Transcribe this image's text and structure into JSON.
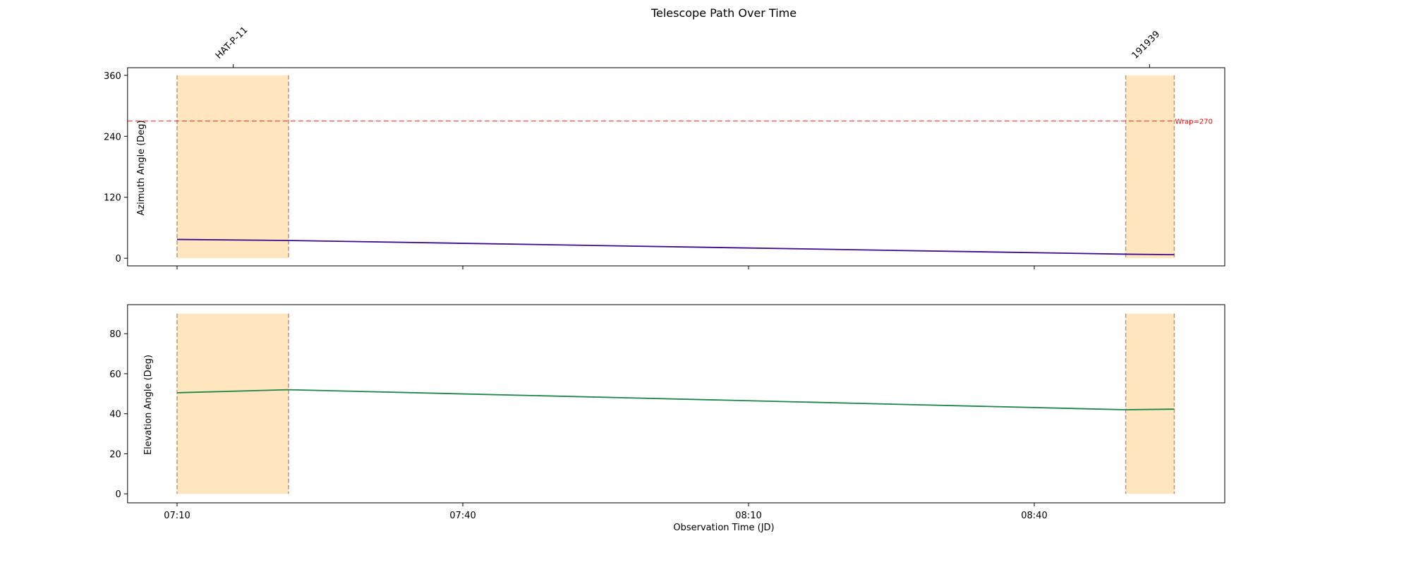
{
  "chart_data": {
    "type": "line",
    "title": "Telescope Path Over Time",
    "xlabel": "Observation Time (JD)",
    "x_ticks": [
      {
        "t": 0,
        "label": "07:10"
      },
      {
        "t": 30,
        "label": "07:40"
      },
      {
        "t": 60,
        "label": "08:10"
      },
      {
        "t": 90,
        "label": "08:40"
      }
    ],
    "xlim_minutes": [
      -5.2,
      110
    ],
    "targets": [
      {
        "name": "HAT-P-11",
        "start": 0,
        "end": 11.7,
        "label_at": 5.9
      },
      {
        "name": "191939",
        "start": 99.6,
        "end": 104.7,
        "label_at": 102.1
      }
    ],
    "top_panel": {
      "ylabel": "Azimuth Angle (Deg)",
      "ylim": [
        -15,
        375
      ],
      "yticks": [
        0,
        120,
        240,
        360
      ],
      "band_range": [
        0,
        360
      ],
      "wrap_line": {
        "value": 270,
        "label": "Wrap=270",
        "color": "#ff0000"
      },
      "series": {
        "color": "#3d0a8f",
        "points": [
          [
            0,
            37
          ],
          [
            11.7,
            35
          ],
          [
            99.6,
            8
          ],
          [
            104.7,
            7
          ]
        ]
      }
    },
    "bottom_panel": {
      "ylabel": "Elevation Angle (Deg)",
      "ylim": [
        -4.5,
        94.5
      ],
      "yticks": [
        0,
        20,
        40,
        60,
        80
      ],
      "band_range": [
        0,
        90
      ],
      "series": {
        "color": "#1e8449",
        "points": [
          [
            0,
            50.5
          ],
          [
            11.7,
            52
          ],
          [
            99.6,
            42
          ],
          [
            104.7,
            42.3
          ]
        ]
      }
    },
    "band_fill": "#ffe6bf",
    "band_edge": "#b39a7a",
    "grid": false
  }
}
